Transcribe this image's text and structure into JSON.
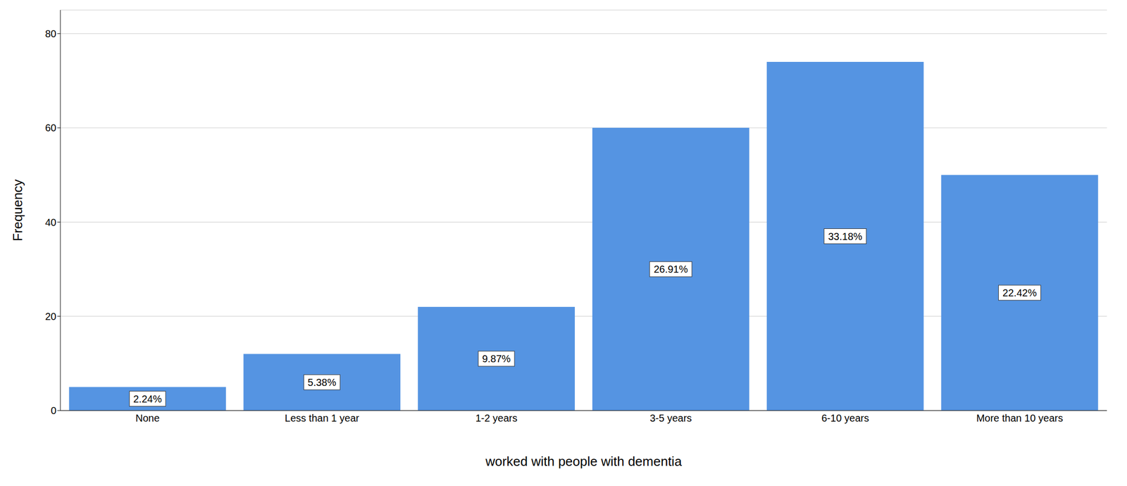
{
  "chart_data": {
    "type": "bar",
    "x_label": "worked with people with dementia",
    "y_label": "Frequency",
    "categories": [
      "None",
      "Less than 1 year",
      "1-2 years",
      "3-5 years",
      "6-10 years",
      "More than 10 years"
    ],
    "values": [
      5,
      12,
      22,
      60,
      74,
      50
    ],
    "percent_labels": [
      "2.24%",
      "5.38%",
      "9.87%",
      "26.91%",
      "33.18%",
      "22.42%"
    ],
    "color": "#5594e2",
    "ylim": [
      0,
      85
    ],
    "yticks": [
      0,
      20,
      40,
      60,
      80
    ],
    "grid": true
  }
}
